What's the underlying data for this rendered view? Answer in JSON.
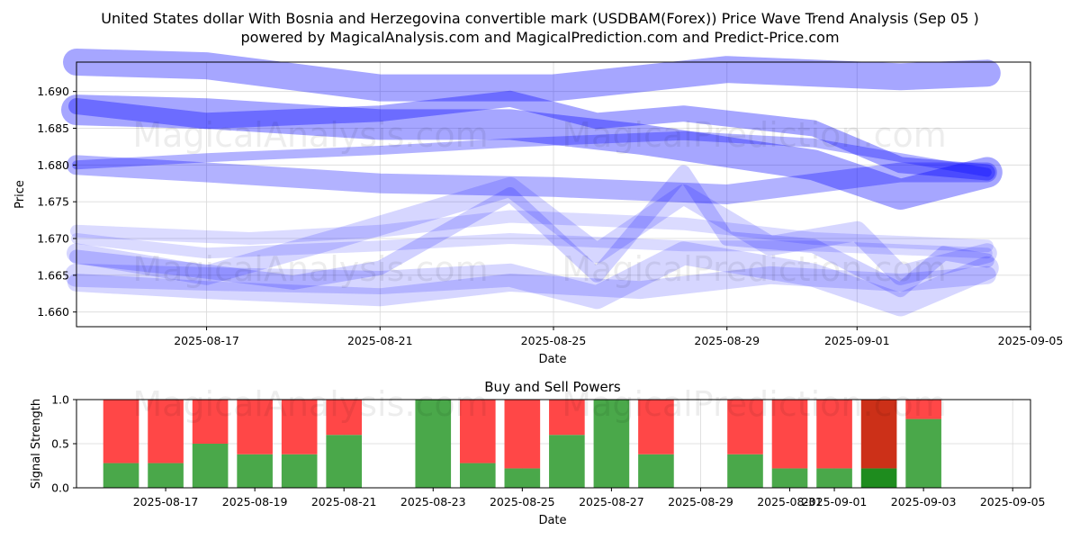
{
  "title_line1": "United States dollar With Bosnia and Herzegovina convertible mark (USDBAM(Forex)) Price Wave Trend Analysis (Sep 05 )",
  "title_line2": "powered by MagicalAnalysis.com and MagicalPrediction.com and Predict-Price.com",
  "watermarks": [
    "MagicalAnalysis.com",
    "MagicalPrediction.com"
  ],
  "chart_data": [
    {
      "type": "line",
      "title": "",
      "xlabel": "Date",
      "ylabel": "Price",
      "ylim": [
        1.658,
        1.694
      ],
      "xlim": [
        "2025-08-14",
        "2025-09-05"
      ],
      "grid": true,
      "xticks": [
        "2025-08-17",
        "2025-08-21",
        "2025-08-25",
        "2025-08-29",
        "2025-09-01",
        "2025-09-05"
      ],
      "yticks": [
        "1.660",
        "1.665",
        "1.670",
        "1.675",
        "1.680",
        "1.685",
        "1.690"
      ],
      "colors": {
        "wave": "#0000ff"
      },
      "series": [
        {
          "x": [
            "2025-08-14",
            "2025-08-17",
            "2025-08-21",
            "2025-08-24",
            "2025-08-27",
            "2025-08-31",
            "2025-09-02",
            "2025-09-04"
          ],
          "y": [
            1.6875,
            1.687,
            1.6855,
            1.6855,
            1.6835,
            1.68,
            1.676,
            1.679
          ]
        },
        {
          "x": [
            "2025-08-14",
            "2025-08-17",
            "2025-08-21",
            "2025-08-24",
            "2025-08-26",
            "2025-08-28",
            "2025-08-31",
            "2025-09-02",
            "2025-09-04"
          ],
          "y": [
            1.688,
            1.686,
            1.687,
            1.689,
            1.686,
            1.687,
            1.685,
            1.68,
            1.679
          ]
        },
        {
          "x": [
            "2025-08-14",
            "2025-08-17",
            "2025-08-21",
            "2025-08-24",
            "2025-08-28",
            "2025-08-31",
            "2025-09-04"
          ],
          "y": [
            1.68,
            1.681,
            1.682,
            1.683,
            1.684,
            1.683,
            1.679
          ]
        },
        {
          "x": [
            "2025-08-14",
            "2025-08-17",
            "2025-08-21",
            "2025-08-25",
            "2025-08-29",
            "2025-09-02",
            "2025-09-04"
          ],
          "y": [
            1.694,
            1.6935,
            1.6905,
            1.6905,
            1.693,
            1.692,
            1.6925
          ]
        },
        {
          "x": [
            "2025-08-14",
            "2025-08-17",
            "2025-08-21",
            "2025-08-25",
            "2025-08-29",
            "2025-09-02",
            "2025-09-04"
          ],
          "y": [
            1.68,
            1.679,
            1.6775,
            1.677,
            1.676,
            1.679,
            1.679
          ]
        },
        {
          "x": [
            "2025-08-14",
            "2025-08-17",
            "2025-08-19",
            "2025-08-21",
            "2025-08-24",
            "2025-08-26",
            "2025-08-28",
            "2025-08-29",
            "2025-08-31",
            "2025-09-02",
            "2025-09-03",
            "2025-09-04"
          ],
          "y": [
            1.6675,
            1.6655,
            1.664,
            1.666,
            1.676,
            1.665,
            1.679,
            1.67,
            1.669,
            1.663,
            1.668,
            1.667
          ]
        },
        {
          "x": [
            "2025-08-14",
            "2025-08-17",
            "2025-08-20",
            "2025-08-24",
            "2025-08-26",
            "2025-08-28",
            "2025-08-30",
            "2025-09-01",
            "2025-09-02",
            "2025-09-04"
          ],
          "y": [
            1.668,
            1.665,
            1.67,
            1.677,
            1.668,
            1.676,
            1.669,
            1.671,
            1.665,
            1.668
          ]
        },
        {
          "x": [
            "2025-08-14",
            "2025-08-17",
            "2025-08-21",
            "2025-08-24",
            "2025-08-26",
            "2025-08-28",
            "2025-08-31",
            "2025-09-02",
            "2025-09-04"
          ],
          "y": [
            1.665,
            1.6645,
            1.664,
            1.665,
            1.662,
            1.668,
            1.665,
            1.661,
            1.666
          ]
        },
        {
          "x": [
            "2025-08-14",
            "2025-08-18",
            "2025-08-21",
            "2025-08-24",
            "2025-08-28",
            "2025-08-31",
            "2025-09-04"
          ],
          "y": [
            1.671,
            1.67,
            1.671,
            1.673,
            1.672,
            1.67,
            1.669
          ]
        },
        {
          "x": [
            "2025-08-14",
            "2025-08-17",
            "2025-08-21",
            "2025-08-24",
            "2025-08-27",
            "2025-08-30",
            "2025-09-02",
            "2025-09-04"
          ],
          "y": [
            1.664,
            1.663,
            1.662,
            1.664,
            1.663,
            1.665,
            1.664,
            1.665
          ]
        },
        {
          "x": [
            "2025-08-14",
            "2025-08-17",
            "2025-08-21",
            "2025-08-24",
            "2025-08-28",
            "2025-08-31",
            "2025-09-04"
          ],
          "y": [
            1.67,
            1.668,
            1.669,
            1.67,
            1.669,
            1.669,
            1.668
          ]
        }
      ]
    },
    {
      "type": "bar",
      "title": "Buy and Sell Powers",
      "xlabel": "Date",
      "ylabel": "Signal Strength",
      "ylim": [
        0,
        1
      ],
      "grid": true,
      "xticks": [
        "2025-08-17",
        "2025-08-19",
        "2025-08-21",
        "2025-08-23",
        "2025-08-25",
        "2025-08-27",
        "2025-08-29",
        "2025-08-31",
        "2025-09-01",
        "2025-09-03",
        "2025-09-05"
      ],
      "yticks": [
        "0.0",
        "0.5",
        "1.0"
      ],
      "colors": {
        "buy": "#4aa84a",
        "sell": "#ff4747",
        "buy_dark": "#1e8c1e",
        "sell_dark": "#cc3018"
      },
      "categories": [
        "2025-08-16",
        "2025-08-17",
        "2025-08-18",
        "2025-08-19",
        "2025-08-20",
        "2025-08-21",
        "2025-08-23",
        "2025-08-24",
        "2025-08-25",
        "2025-08-26",
        "2025-08-27",
        "2025-08-28",
        "2025-08-30",
        "2025-08-31",
        "2025-09-01",
        "2025-09-02",
        "2025-09-03"
      ],
      "series": [
        {
          "name": "Buy",
          "values": [
            0.28,
            0.28,
            0.5,
            0.38,
            0.38,
            0.6,
            1.0,
            0.28,
            0.22,
            0.6,
            1.0,
            0.38,
            0.38,
            0.22,
            0.22,
            0.22,
            0.78
          ]
        },
        {
          "name": "Sell",
          "values": [
            0.72,
            0.72,
            0.5,
            0.62,
            0.62,
            0.4,
            0.0,
            0.72,
            0.78,
            0.4,
            0.0,
            0.62,
            0.62,
            0.78,
            0.78,
            0.78,
            0.22
          ]
        }
      ],
      "highlight": "2025-09-02"
    }
  ]
}
